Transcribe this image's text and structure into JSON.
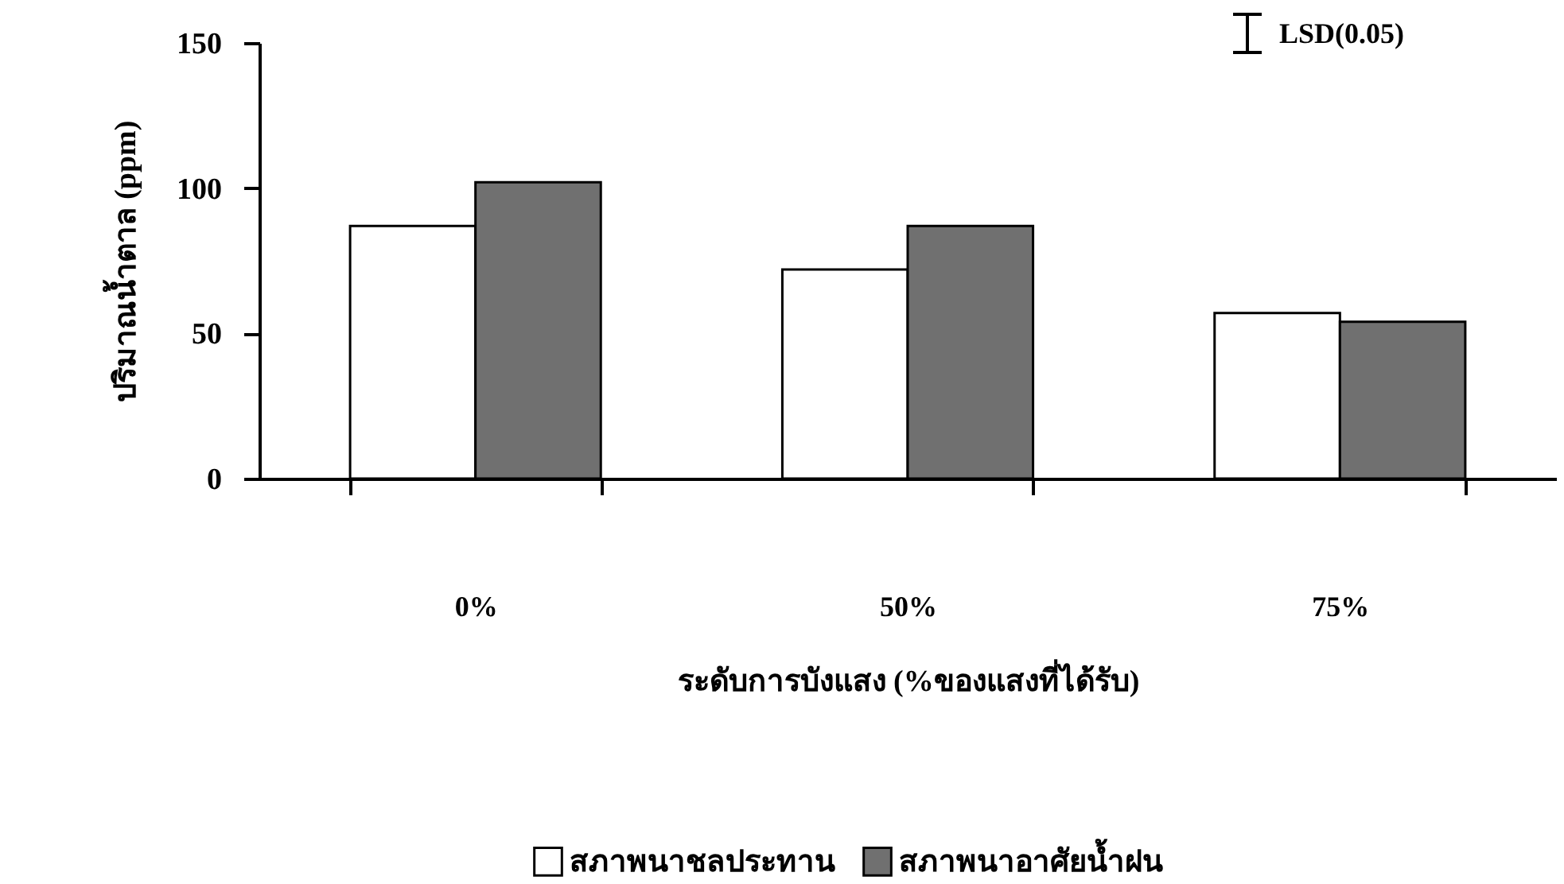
{
  "chart_data": {
    "type": "bar",
    "xlabel": "ระดับการบังแสง (%ของแสงที่ได้รับ)",
    "ylabel": "ปริมาณน้ำตาล (ppm)",
    "categories": [
      "0%",
      "50%",
      "75%"
    ],
    "series": [
      {
        "name": "สภาพนาชลประทาน",
        "color": "#ffffff",
        "values": [
          87,
          72,
          57
        ]
      },
      {
        "name": "สภาพนาอาศัยน้ำฝน",
        "color": "#707070",
        "values": [
          102,
          87,
          54
        ]
      }
    ],
    "ylim": [
      0,
      150
    ],
    "yticks": [
      0,
      50,
      100,
      150
    ],
    "grid": false,
    "legend": "bottom",
    "annotations": [
      "LSD(0.05)"
    ]
  }
}
